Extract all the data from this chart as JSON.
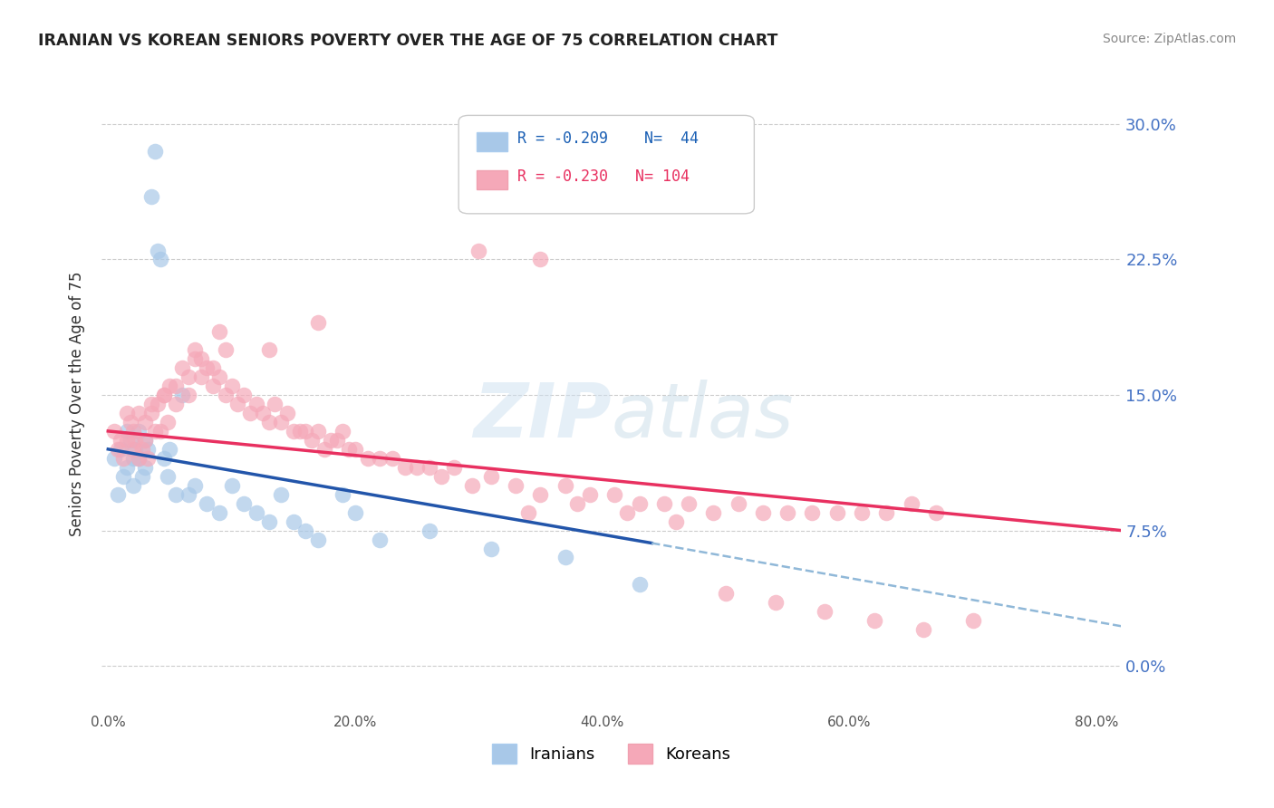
{
  "title": "IRANIAN VS KOREAN SENIORS POVERTY OVER THE AGE OF 75 CORRELATION CHART",
  "source": "Source: ZipAtlas.com",
  "ylabel": "Seniors Poverty Over the Age of 75",
  "xlabel_ticks": [
    "0.0%",
    "20.0%",
    "40.0%",
    "60.0%",
    "80.0%"
  ],
  "ylabel_ticks": [
    "0.0%",
    "7.5%",
    "15.0%",
    "22.5%",
    "30.0%"
  ],
  "xlim": [
    -0.005,
    0.82
  ],
  "ylim": [
    -0.025,
    0.315
  ],
  "iranians_color": "#a8c8e8",
  "koreans_color": "#f5a8b8",
  "iranians_line_color": "#2255aa",
  "koreans_line_color": "#e83060",
  "dashed_line_color": "#90b8d8",
  "watermark": "ZIPatlas",
  "legend_iranians_R": "-0.209",
  "legend_iranians_N": "44",
  "legend_koreans_R": "-0.230",
  "legend_koreans_N": "104",
  "iranians_x": [
    0.005,
    0.008,
    0.01,
    0.012,
    0.015,
    0.015,
    0.018,
    0.02,
    0.02,
    0.022,
    0.025,
    0.025,
    0.028,
    0.03,
    0.03,
    0.032,
    0.035,
    0.038,
    0.04,
    0.042,
    0.045,
    0.048,
    0.05,
    0.055,
    0.06,
    0.065,
    0.07,
    0.08,
    0.09,
    0.1,
    0.11,
    0.12,
    0.13,
    0.14,
    0.15,
    0.16,
    0.17,
    0.19,
    0.2,
    0.22,
    0.26,
    0.31,
    0.37,
    0.43
  ],
  "iranians_y": [
    0.115,
    0.095,
    0.12,
    0.105,
    0.13,
    0.11,
    0.125,
    0.115,
    0.1,
    0.12,
    0.13,
    0.115,
    0.105,
    0.125,
    0.11,
    0.12,
    0.26,
    0.285,
    0.23,
    0.225,
    0.115,
    0.105,
    0.12,
    0.095,
    0.15,
    0.095,
    0.1,
    0.09,
    0.085,
    0.1,
    0.09,
    0.085,
    0.08,
    0.095,
    0.08,
    0.075,
    0.07,
    0.095,
    0.085,
    0.07,
    0.075,
    0.065,
    0.06,
    0.045
  ],
  "koreans_x": [
    0.005,
    0.008,
    0.01,
    0.012,
    0.015,
    0.015,
    0.018,
    0.02,
    0.02,
    0.022,
    0.025,
    0.028,
    0.03,
    0.03,
    0.032,
    0.035,
    0.038,
    0.04,
    0.042,
    0.045,
    0.048,
    0.05,
    0.055,
    0.06,
    0.065,
    0.07,
    0.075,
    0.08,
    0.085,
    0.09,
    0.095,
    0.1,
    0.105,
    0.11,
    0.115,
    0.12,
    0.125,
    0.13,
    0.135,
    0.14,
    0.145,
    0.15,
    0.155,
    0.16,
    0.165,
    0.17,
    0.175,
    0.18,
    0.185,
    0.19,
    0.195,
    0.2,
    0.21,
    0.22,
    0.23,
    0.24,
    0.25,
    0.26,
    0.27,
    0.28,
    0.295,
    0.31,
    0.33,
    0.35,
    0.37,
    0.39,
    0.41,
    0.43,
    0.45,
    0.47,
    0.49,
    0.51,
    0.53,
    0.55,
    0.57,
    0.59,
    0.61,
    0.63,
    0.65,
    0.67,
    0.07,
    0.09,
    0.13,
    0.17,
    0.025,
    0.035,
    0.045,
    0.055,
    0.065,
    0.075,
    0.085,
    0.095,
    0.34,
    0.38,
    0.42,
    0.46,
    0.5,
    0.54,
    0.58,
    0.62,
    0.66,
    0.7,
    0.3,
    0.35
  ],
  "koreans_y": [
    0.13,
    0.12,
    0.125,
    0.115,
    0.14,
    0.125,
    0.135,
    0.13,
    0.12,
    0.125,
    0.115,
    0.12,
    0.135,
    0.125,
    0.115,
    0.14,
    0.13,
    0.145,
    0.13,
    0.15,
    0.135,
    0.155,
    0.145,
    0.165,
    0.15,
    0.17,
    0.16,
    0.165,
    0.155,
    0.16,
    0.15,
    0.155,
    0.145,
    0.15,
    0.14,
    0.145,
    0.14,
    0.135,
    0.145,
    0.135,
    0.14,
    0.13,
    0.13,
    0.13,
    0.125,
    0.13,
    0.12,
    0.125,
    0.125,
    0.13,
    0.12,
    0.12,
    0.115,
    0.115,
    0.115,
    0.11,
    0.11,
    0.11,
    0.105,
    0.11,
    0.1,
    0.105,
    0.1,
    0.095,
    0.1,
    0.095,
    0.095,
    0.09,
    0.09,
    0.09,
    0.085,
    0.09,
    0.085,
    0.085,
    0.085,
    0.085,
    0.085,
    0.085,
    0.09,
    0.085,
    0.175,
    0.185,
    0.175,
    0.19,
    0.14,
    0.145,
    0.15,
    0.155,
    0.16,
    0.17,
    0.165,
    0.175,
    0.085,
    0.09,
    0.085,
    0.08,
    0.04,
    0.035,
    0.03,
    0.025,
    0.02,
    0.025,
    0.23,
    0.225
  ],
  "iranians_trend_x": [
    0.0,
    0.44
  ],
  "iranians_trend_y": [
    0.12,
    0.068
  ],
  "koreans_trend_x": [
    0.0,
    0.82
  ],
  "koreans_trend_y": [
    0.13,
    0.075
  ],
  "dashed_trend_x": [
    0.44,
    0.82
  ],
  "dashed_trend_y": [
    0.068,
    0.022
  ]
}
